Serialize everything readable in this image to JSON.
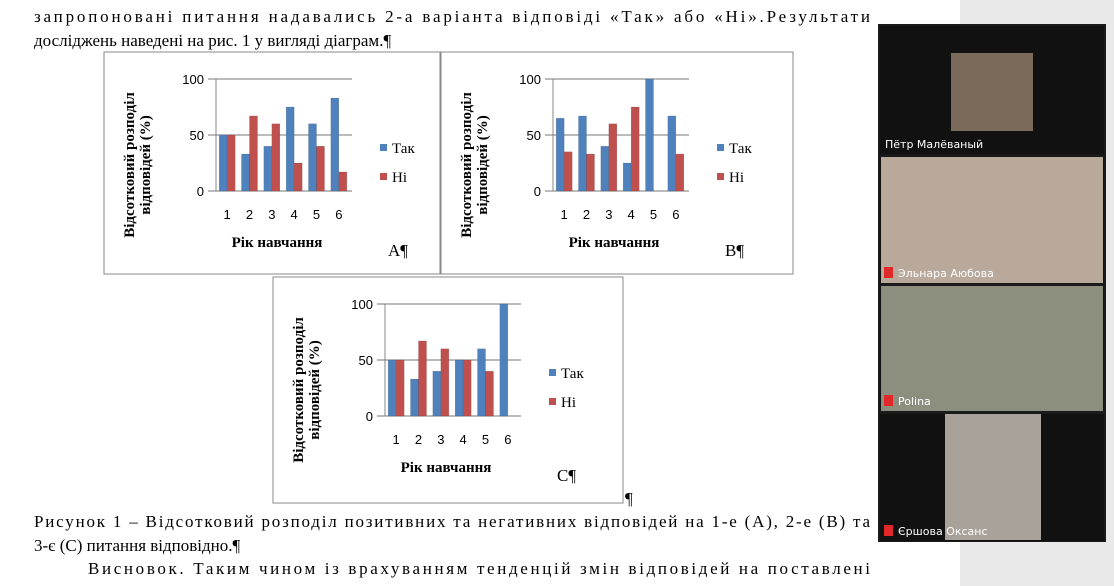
{
  "document": {
    "lines": [
      "запропоновані питання надавались 2-а варіанта відповіді «Так» або «Ні».Результати",
      "досліджень наведені на рис. 1 у вигляді діаграм.¶"
    ],
    "caption": [
      "Рисунок 1 – Відсотковий розподіл позитивних та негативних відповідей на 1-е (А), 2-е (В) та",
      "3-є (С) питання відповідно.¶"
    ],
    "conclusion": "Висновок. Таким чином із врахуванням тенденцій змін відповідей на поставлені",
    "end_mark": "¶"
  },
  "chart_data": [
    {
      "type": "bar",
      "ylabel": [
        "Відсотковий розподіл",
        "відповідей (%)"
      ],
      "xlabel": "Рік навчання",
      "panel_label": "А¶",
      "categories": [
        "1",
        "2",
        "3",
        "4",
        "5",
        "6"
      ],
      "series": [
        {
          "name": "Так",
          "color": "#4f81bd",
          "values": [
            50,
            33,
            40,
            75,
            60,
            83
          ]
        },
        {
          "name": "Ні",
          "color": "#c0504d",
          "values": [
            50,
            67,
            60,
            25,
            40,
            17
          ]
        }
      ],
      "ylim": [
        0,
        100
      ],
      "yticks": [
        0,
        50,
        100
      ],
      "grid": true
    },
    {
      "type": "bar",
      "ylabel": [
        "Відсотковий розподіл",
        "відповідей (%)"
      ],
      "xlabel": "Рік навчання",
      "panel_label": "В¶",
      "categories": [
        "1",
        "2",
        "3",
        "4",
        "5",
        "6"
      ],
      "series": [
        {
          "name": "Так",
          "color": "#4f81bd",
          "values": [
            65,
            67,
            40,
            25,
            100,
            67
          ]
        },
        {
          "name": "Ні",
          "color": "#c0504d",
          "values": [
            35,
            33,
            60,
            75,
            0,
            33
          ]
        }
      ],
      "ylim": [
        0,
        100
      ],
      "yticks": [
        0,
        50,
        100
      ],
      "grid": true
    },
    {
      "type": "bar",
      "ylabel": [
        "Відсотковий розподіл",
        "відповідей (%)"
      ],
      "xlabel": "Рік навчання",
      "panel_label": "С¶",
      "categories": [
        "1",
        "2",
        "3",
        "4",
        "5",
        "6"
      ],
      "series": [
        {
          "name": "Так",
          "color": "#4f81bd",
          "values": [
            50,
            33,
            40,
            50,
            60,
            100
          ]
        },
        {
          "name": "Ні",
          "color": "#c0504d",
          "values": [
            50,
            67,
            60,
            50,
            40,
            0
          ]
        }
      ],
      "ylim": [
        0,
        100
      ],
      "yticks": [
        0,
        50,
        100
      ],
      "grid": true
    }
  ],
  "participants": [
    "Пётр Малёваный",
    "Эльнара Аюбова",
    "Polina",
    "Єршова Оксанс"
  ]
}
